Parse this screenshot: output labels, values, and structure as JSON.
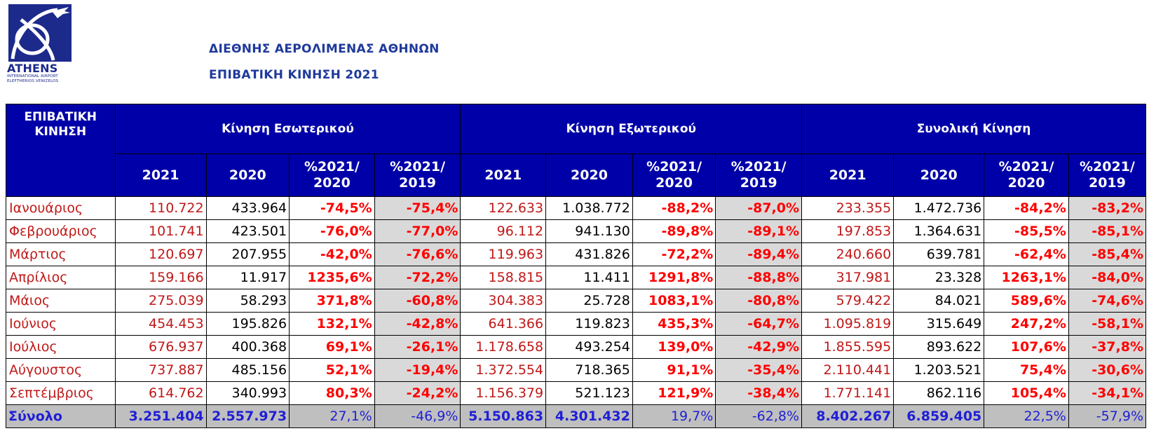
{
  "logo": {
    "name": "ATHENS",
    "line1": "INTERNATIONAL AIRPORT",
    "line2": "ELEFTHERIOS VENIZELOS"
  },
  "header": {
    "title": "ΔΙΕΘΝΗΣ ΑΕΡΟΛΙΜΕΝΑΣ ΑΘΗΝΩΝ",
    "subtitle": "ΕΠΙΒΑΤΙΚΗ ΚΙΝΗΣΗ 2021"
  },
  "colors": {
    "header_bg": "#0000a8",
    "title_blue": "#1f3a9a",
    "value_red": "#c01818",
    "pct_red": "#ff0000",
    "shade_gray": "#d9d9d9",
    "total_bg": "#bfbfbf",
    "total_text": "#1f1fd6"
  },
  "table": {
    "corner_line1": "ΕΠΙΒΑΤΙΚΗ",
    "corner_line2": "ΚΙΝΗΣΗ",
    "groups": [
      "Κίνηση Εσωτερικού",
      "Κίνηση Εξωτερικού",
      "Συνολική Κίνηση"
    ],
    "subheaders": [
      {
        "l1": "2021",
        "l2": ""
      },
      {
        "l1": "2020",
        "l2": ""
      },
      {
        "l1": "%2021/",
        "l2": "2020"
      },
      {
        "l1": "%2021/",
        "l2": "2019"
      }
    ],
    "rows": [
      {
        "month": "Ιανουάριος",
        "v": [
          "110.722",
          "433.964",
          "-74,5%",
          "-75,4%",
          "122.633",
          "1.038.772",
          "-88,2%",
          "-87,0%",
          "233.355",
          "1.472.736",
          "-84,2%",
          "-83,2%"
        ]
      },
      {
        "month": "Φεβρουάριος",
        "v": [
          "101.741",
          "423.501",
          "-76,0%",
          "-77,0%",
          "96.112",
          "941.130",
          "-89,8%",
          "-89,1%",
          "197.853",
          "1.364.631",
          "-85,5%",
          "-85,1%"
        ]
      },
      {
        "month": "Μάρτιος",
        "v": [
          "120.697",
          "207.955",
          "-42,0%",
          "-76,6%",
          "119.963",
          "431.826",
          "-72,2%",
          "-89,4%",
          "240.660",
          "639.781",
          "-62,4%",
          "-85,4%"
        ]
      },
      {
        "month": "Απρίλιος",
        "v": [
          "159.166",
          "11.917",
          "1235,6%",
          "-72,2%",
          "158.815",
          "11.411",
          "1291,8%",
          "-88,8%",
          "317.981",
          "23.328",
          "1263,1%",
          "-84,0%"
        ]
      },
      {
        "month": "Μάιος",
        "v": [
          "275.039",
          "58.293",
          "371,8%",
          "-60,8%",
          "304.383",
          "25.728",
          "1083,1%",
          "-80,8%",
          "579.422",
          "84.021",
          "589,6%",
          "-74,6%"
        ]
      },
      {
        "month": "Ιούνιος",
        "v": [
          "454.453",
          "195.826",
          "132,1%",
          "-42,8%",
          "641.366",
          "119.823",
          "435,3%",
          "-64,7%",
          "1.095.819",
          "315.649",
          "247,2%",
          "-58,1%"
        ]
      },
      {
        "month": "Ιούλιος",
        "v": [
          "676.937",
          "400.368",
          "69,1%",
          "-26,1%",
          "1.178.658",
          "493.254",
          "139,0%",
          "-42,9%",
          "1.855.595",
          "893.622",
          "107,6%",
          "-37,8%"
        ]
      },
      {
        "month": "Αύγουστος",
        "v": [
          "737.887",
          "485.156",
          "52,1%",
          "-19,4%",
          "1.372.554",
          "718.365",
          "91,1%",
          "-35,4%",
          "2.110.441",
          "1.203.521",
          "75,4%",
          "-30,6%"
        ]
      },
      {
        "month": "Σεπτέμβριος",
        "v": [
          "614.762",
          "340.993",
          "80,3%",
          "-24,2%",
          "1.156.379",
          "521.123",
          "121,9%",
          "-38,4%",
          "1.771.141",
          "862.116",
          "105,4%",
          "-34,1%"
        ]
      }
    ],
    "total": {
      "month": "Σύνολο",
      "v": [
        "3.251.404",
        "2.557.973",
        "27,1%",
        "-46,9%",
        "5.150.863",
        "4.301.432",
        "19,7%",
        "-62,8%",
        "8.402.267",
        "6.859.405",
        "22,5%",
        "-57,9%"
      ]
    }
  }
}
